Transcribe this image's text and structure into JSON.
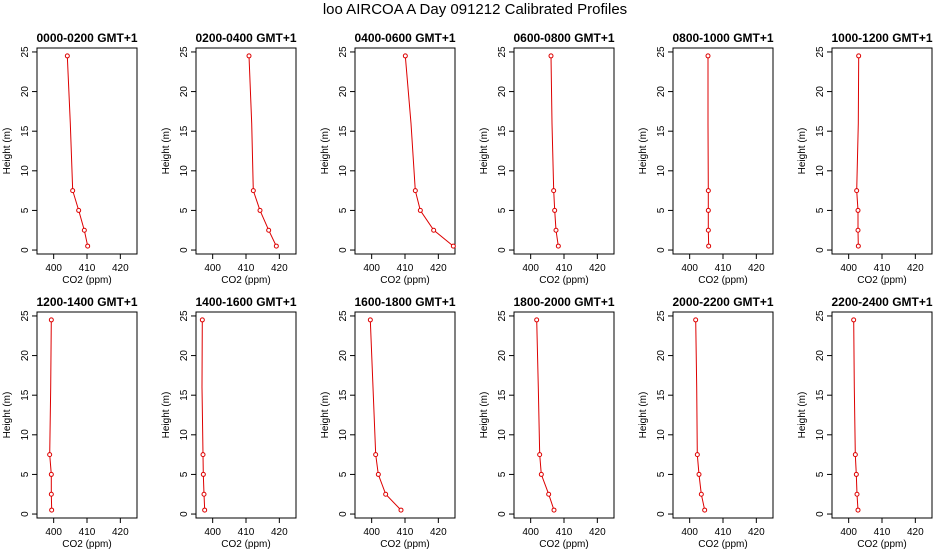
{
  "title": "loo AIRCOA A  Day 091212  Calibrated Profiles",
  "colors": {
    "series": "#dd0000",
    "axis": "#000000"
  },
  "chart_data": [
    {
      "type": "line",
      "title": "0000-0200 GMT+1",
      "xlabel": "CO2 (ppm)",
      "ylabel": "Height (m)",
      "xlim": [
        395,
        425
      ],
      "ylim": [
        -0.5,
        25.5
      ],
      "xticks": [
        400,
        410,
        420
      ],
      "yticks": [
        0,
        5,
        10,
        15,
        20,
        25
      ],
      "series": [
        {
          "x": [
            404.1,
            405.0,
            405.7,
            407.5,
            409.2,
            410.2
          ],
          "y": [
            24.5,
            16,
            7.5,
            5,
            2.5,
            0.5
          ]
        }
      ]
    },
    {
      "type": "line",
      "title": "0200-0400 GMT+1",
      "xlabel": "CO2 (ppm)",
      "ylabel": "Height (m)",
      "xlim": [
        395,
        425
      ],
      "ylim": [
        -0.5,
        25.5
      ],
      "xticks": [
        400,
        410,
        420
      ],
      "yticks": [
        0,
        5,
        10,
        15,
        20,
        25
      ],
      "series": [
        {
          "x": [
            410.9,
            411.7,
            412.2,
            414.2,
            416.8,
            419.1
          ],
          "y": [
            24.5,
            16,
            7.5,
            5,
            2.5,
            0.5
          ]
        }
      ]
    },
    {
      "type": "line",
      "title": "0400-0600 GMT+1",
      "xlabel": "CO2 (ppm)",
      "ylabel": "Height (m)",
      "xlim": [
        395,
        425
      ],
      "ylim": [
        -0.5,
        25.5
      ],
      "xticks": [
        400,
        410,
        420
      ],
      "yticks": [
        0,
        5,
        10,
        15,
        20,
        25
      ],
      "series": [
        {
          "x": [
            410.1,
            411.8,
            413.1,
            414.6,
            418.6,
            424.5
          ],
          "y": [
            24.5,
            16,
            7.5,
            5,
            2.5,
            0.5
          ]
        }
      ]
    },
    {
      "type": "line",
      "title": "0600-0800 GMT+1",
      "xlabel": "CO2 (ppm)",
      "ylabel": "Height (m)",
      "xlim": [
        395,
        425
      ],
      "ylim": [
        -0.5,
        25.5
      ],
      "xticks": [
        400,
        410,
        420
      ],
      "yticks": [
        0,
        5,
        10,
        15,
        20,
        25
      ],
      "series": [
        {
          "x": [
            406.1,
            406.4,
            406.9,
            407.2,
            407.6,
            408.3
          ],
          "y": [
            24.5,
            16,
            7.5,
            5,
            2.5,
            0.5
          ]
        }
      ]
    },
    {
      "type": "line",
      "title": "0800-1000 GMT+1",
      "xlabel": "CO2 (ppm)",
      "ylabel": "Height (m)",
      "xlim": [
        395,
        425
      ],
      "ylim": [
        -0.5,
        25.5
      ],
      "xticks": [
        400,
        410,
        420
      ],
      "yticks": [
        0,
        5,
        10,
        15,
        20,
        25
      ],
      "series": [
        {
          "x": [
            405.5,
            405.5,
            405.6,
            405.6,
            405.6,
            405.7
          ],
          "y": [
            24.5,
            16,
            7.5,
            5,
            2.5,
            0.5
          ]
        }
      ]
    },
    {
      "type": "line",
      "title": "1000-1200 GMT+1",
      "xlabel": "CO2 (ppm)",
      "ylabel": "Height (m)",
      "xlim": [
        395,
        425
      ],
      "ylim": [
        -0.5,
        25.5
      ],
      "xticks": [
        400,
        410,
        420
      ],
      "yticks": [
        0,
        5,
        10,
        15,
        20,
        25
      ],
      "series": [
        {
          "x": [
            403.0,
            402.9,
            402.4,
            402.8,
            402.8,
            402.9
          ],
          "y": [
            24.5,
            16,
            7.5,
            5,
            2.5,
            0.5
          ]
        }
      ]
    },
    {
      "type": "line",
      "title": "1200-1400 GMT+1",
      "xlabel": "CO2 (ppm)",
      "ylabel": "Height (m)",
      "xlim": [
        395,
        425
      ],
      "ylim": [
        -0.5,
        25.5
      ],
      "xticks": [
        400,
        410,
        420
      ],
      "yticks": [
        0,
        5,
        10,
        15,
        20,
        25
      ],
      "series": [
        {
          "x": [
            399.3,
            399.1,
            398.8,
            399.3,
            399.3,
            399.4
          ],
          "y": [
            24.5,
            16,
            7.5,
            5,
            2.5,
            0.5
          ]
        }
      ]
    },
    {
      "type": "line",
      "title": "1400-1600 GMT+1",
      "xlabel": "CO2 (ppm)",
      "ylabel": "Height (m)",
      "xlim": [
        395,
        425
      ],
      "ylim": [
        -0.5,
        25.5
      ],
      "xticks": [
        400,
        410,
        420
      ],
      "yticks": [
        0,
        5,
        10,
        15,
        20,
        25
      ],
      "series": [
        {
          "x": [
            396.9,
            396.8,
            397.1,
            397.2,
            397.4,
            397.6
          ],
          "y": [
            24.5,
            16,
            7.5,
            5,
            2.5,
            0.5
          ]
        }
      ]
    },
    {
      "type": "line",
      "title": "1600-1800 GMT+1",
      "xlabel": "CO2 (ppm)",
      "ylabel": "Height (m)",
      "xlim": [
        395,
        425
      ],
      "ylim": [
        -0.5,
        25.5
      ],
      "xticks": [
        400,
        410,
        420
      ],
      "yticks": [
        0,
        5,
        10,
        15,
        20,
        25
      ],
      "series": [
        {
          "x": [
            399.6,
            400.4,
            401.2,
            402.0,
            404.2,
            408.8
          ],
          "y": [
            24.5,
            16,
            7.5,
            5,
            2.5,
            0.5
          ]
        }
      ]
    },
    {
      "type": "line",
      "title": "1800-2000 GMT+1",
      "xlabel": "CO2 (ppm)",
      "ylabel": "Height (m)",
      "xlim": [
        395,
        425
      ],
      "ylim": [
        -0.5,
        25.5
      ],
      "xticks": [
        400,
        410,
        420
      ],
      "yticks": [
        0,
        5,
        10,
        15,
        20,
        25
      ],
      "series": [
        {
          "x": [
            401.8,
            402.3,
            402.7,
            403.2,
            405.4,
            407.0
          ],
          "y": [
            24.5,
            16,
            7.5,
            5,
            2.5,
            0.5
          ]
        }
      ]
    },
    {
      "type": "line",
      "title": "2000-2200 GMT+1",
      "xlabel": "CO2 (ppm)",
      "ylabel": "Height (m)",
      "xlim": [
        395,
        425
      ],
      "ylim": [
        -0.5,
        25.5
      ],
      "xticks": [
        400,
        410,
        420
      ],
      "yticks": [
        0,
        5,
        10,
        15,
        20,
        25
      ],
      "series": [
        {
          "x": [
            401.8,
            402.1,
            402.3,
            402.8,
            403.5,
            404.5
          ],
          "y": [
            24.5,
            16,
            7.5,
            5,
            2.5,
            0.5
          ]
        }
      ]
    },
    {
      "type": "line",
      "title": "2200-2400 GMT+1",
      "xlabel": "CO2 (ppm)",
      "ylabel": "Height (m)",
      "xlim": [
        395,
        425
      ],
      "ylim": [
        -0.5,
        25.5
      ],
      "xticks": [
        400,
        410,
        420
      ],
      "yticks": [
        0,
        5,
        10,
        15,
        20,
        25
      ],
      "series": [
        {
          "x": [
            401.5,
            401.7,
            402.0,
            402.3,
            402.5,
            402.8
          ],
          "y": [
            24.5,
            16,
            7.5,
            5,
            2.5,
            0.5
          ]
        }
      ]
    }
  ]
}
